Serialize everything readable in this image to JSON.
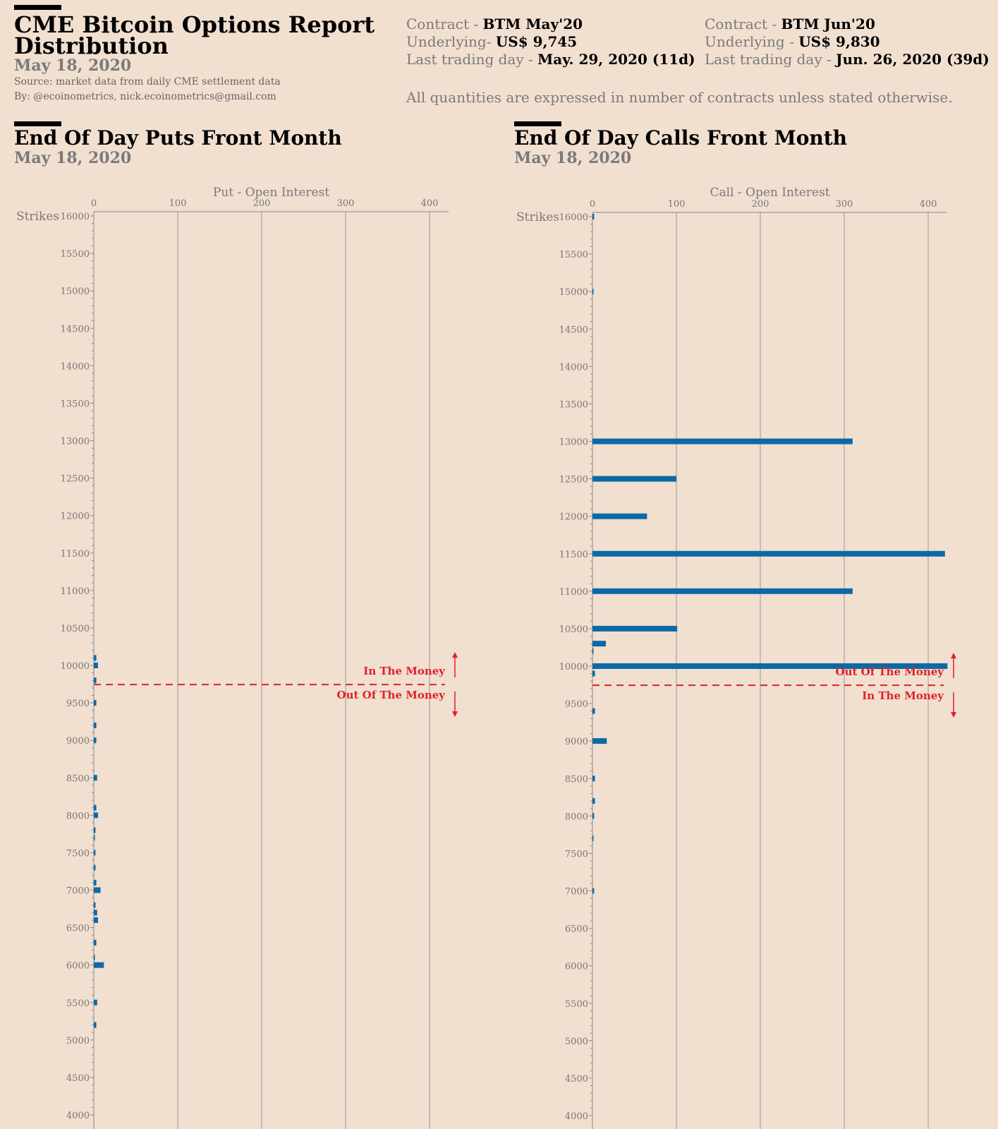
{
  "header": {
    "title_line1": "CME Bitcoin Options Report",
    "title_line2": "Distribution",
    "date": "May 18, 2020",
    "source": "Source: market data from daily CME settlement data",
    "by": "By: @ecoinometrics, nick.ecoinometrics@gmail.com"
  },
  "contracts": [
    {
      "contract_label": "Contract - ",
      "contract": "BTM May'20",
      "underlying_label": "Underlying- ",
      "underlying": "US$ 9,745",
      "ltd_label": "Last trading day - ",
      "ltd": "May. 29, 2020 (11d)"
    },
    {
      "contract_label": "Contract - ",
      "contract": "BTM Jun'20",
      "underlying_label": "Underlying - ",
      "underlying": "US$ 9,830",
      "ltd_label": "Last trading day - ",
      "ltd": "Jun. 26, 2020 (39d)"
    }
  ],
  "note": "All quantities are expressed in number of contracts unless stated otherwise.",
  "colors": {
    "bar": "#0a6aa6",
    "line": "#e0202a",
    "axis": "#888888"
  },
  "chart_data": [
    {
      "type": "bar",
      "title": "End Of Day Puts Front Month",
      "subtitle": "May 18, 2020",
      "xlabel": "Put - Open Interest",
      "ylabel": "Strikes",
      "xlim": [
        0,
        420
      ],
      "ylim": [
        4000,
        16000
      ],
      "xticks": [
        0,
        100,
        200,
        300,
        400
      ],
      "yticks": [
        16000,
        15500,
        15000,
        14500,
        14000,
        13500,
        13000,
        12500,
        12000,
        11500,
        11000,
        10500,
        10000,
        9500,
        9000,
        8500,
        8000,
        7500,
        7000,
        6500,
        6000,
        5500,
        5000,
        4500,
        4000
      ],
      "underlying": 9745,
      "label_above": "In The Money",
      "label_below": "Out Of The Money",
      "strikes": [
        10100,
        10000,
        9800,
        9500,
        9200,
        9000,
        8500,
        8100,
        8000,
        7800,
        7700,
        7500,
        7300,
        7100,
        7000,
        6800,
        6700,
        6600,
        6300,
        6100,
        6000,
        5500,
        5200
      ],
      "values": [
        3,
        5,
        3,
        3,
        3,
        3,
        4,
        3,
        5,
        2,
        1,
        2,
        2,
        3,
        8,
        2,
        4,
        5,
        3,
        1,
        12,
        4,
        3
      ]
    },
    {
      "type": "bar",
      "title": "End Of Day Calls Front Month",
      "subtitle": "May 18, 2020",
      "xlabel": "Call - Open Interest",
      "ylabel": "Strikes",
      "xlim": [
        0,
        425
      ],
      "ylim": [
        4000,
        16000
      ],
      "xticks": [
        0,
        100,
        200,
        300,
        400
      ],
      "yticks": [
        16000,
        15500,
        15000,
        14500,
        14000,
        13500,
        13000,
        12500,
        12000,
        11500,
        11000,
        10500,
        10000,
        9500,
        9000,
        8500,
        8000,
        7500,
        7000,
        6500,
        6000,
        5500,
        5000,
        4500,
        4000
      ],
      "underlying": 9745,
      "label_above": "Out Of The Money",
      "label_below": "In The Money",
      "strikes": [
        16000,
        15000,
        13000,
        12500,
        12000,
        11500,
        11000,
        10500,
        10300,
        10200,
        10000,
        9900,
        9400,
        9000,
        8500,
        8200,
        8000,
        7700,
        7000
      ],
      "values": [
        2,
        1,
        310,
        100,
        65,
        420,
        310,
        101,
        16,
        1,
        423,
        3,
        3,
        17,
        3,
        3,
        2,
        1,
        2
      ]
    }
  ]
}
